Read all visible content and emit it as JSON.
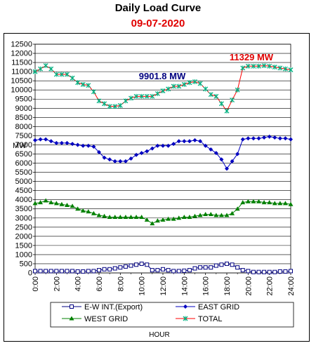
{
  "chart_data": {
    "type": "line",
    "title": "Daily Load  Curve",
    "subtitle": "09-07-2020",
    "xlabel": "HOUR",
    "ylabel": "MW",
    "ylim": [
      0,
      12500
    ],
    "ytick_step": 500,
    "xlim": [
      0,
      24
    ],
    "x_tick_labels": [
      "0:00",
      "2:00",
      "4:00",
      "6:00",
      "8:00",
      "10:00",
      "12:00",
      "14:00",
      "16:00",
      "18:00",
      "20:00",
      "22:00",
      "24:00"
    ],
    "grid": "horizontal",
    "legend_position": "bottom",
    "x": [
      0,
      0.5,
      1,
      1.5,
      2,
      2.5,
      3,
      3.5,
      4,
      4.5,
      5,
      5.5,
      6,
      6.5,
      7,
      7.5,
      8,
      8.5,
      9,
      9.5,
      10,
      10.5,
      11,
      11.5,
      12,
      12.5,
      13,
      13.5,
      14,
      14.5,
      15,
      15.5,
      16,
      16.5,
      17,
      17.5,
      18,
      18.5,
      19,
      19.5,
      20,
      20.5,
      21,
      21.5,
      22,
      22.5,
      23,
      23.5,
      24
    ],
    "series": [
      {
        "name": "E-W INT.(Export)",
        "color": "#000080",
        "marker": "square-open",
        "values": [
          100,
          100,
          100,
          100,
          100,
          100,
          100,
          100,
          80,
          80,
          100,
          100,
          150,
          200,
          200,
          250,
          300,
          350,
          400,
          450,
          500,
          450,
          150,
          150,
          200,
          150,
          100,
          100,
          120,
          150,
          250,
          300,
          300,
          300,
          400,
          450,
          500,
          450,
          300,
          150,
          100,
          50,
          50,
          50,
          50,
          50,
          80,
          80,
          100
        ]
      },
      {
        "name": "EAST GRID",
        "color": "#0000c0",
        "marker": "diamond",
        "values": [
          7250,
          7300,
          7300,
          7200,
          7100,
          7100,
          7100,
          7050,
          7000,
          6950,
          6950,
          6900,
          6600,
          6300,
          6200,
          6100,
          6100,
          6100,
          6250,
          6450,
          6550,
          6650,
          6800,
          6950,
          6950,
          6950,
          7050,
          7200,
          7200,
          7200,
          7250,
          7200,
          6950,
          6750,
          6550,
          6200,
          5700,
          6100,
          6500,
          7300,
          7350,
          7350,
          7350,
          7400,
          7450,
          7400,
          7350,
          7350,
          7300
        ]
      },
      {
        "name": "WEST GRID",
        "color": "#008000",
        "marker": "triangle",
        "values": [
          3800,
          3850,
          3950,
          3850,
          3800,
          3750,
          3700,
          3650,
          3500,
          3400,
          3350,
          3250,
          3150,
          3100,
          3050,
          3050,
          3050,
          3050,
          3050,
          3050,
          3050,
          2900,
          2700,
          2850,
          2900,
          2950,
          2950,
          3000,
          3050,
          3050,
          3100,
          3150,
          3200,
          3200,
          3150,
          3150,
          3150,
          3250,
          3500,
          3850,
          3900,
          3900,
          3900,
          3850,
          3850,
          3800,
          3800,
          3800,
          3750
        ]
      },
      {
        "name": "TOTAL",
        "color": "#ff0000",
        "line_color": "#ff0000",
        "marker": "star",
        "marker_color": "#00b080",
        "values": [
          11000,
          11150,
          11329,
          11150,
          10850,
          10850,
          10850,
          10650,
          10400,
          10300,
          10250,
          9900,
          9400,
          9250,
          9100,
          9100,
          9150,
          9400,
          9550,
          9650,
          9650,
          9650,
          9650,
          9800,
          9950,
          10050,
          10200,
          10200,
          10300,
          10400,
          10450,
          10350,
          10050,
          9750,
          9650,
          9250,
          8850,
          9450,
          10000,
          11200,
          11300,
          11300,
          11300,
          11329,
          11300,
          11250,
          11200,
          11150,
          11100
        ]
      }
    ],
    "annotations": [
      {
        "text": "11329 MW",
        "color": "#e00000"
      },
      {
        "text": "9901.8 MW",
        "color": "#000080"
      }
    ]
  }
}
